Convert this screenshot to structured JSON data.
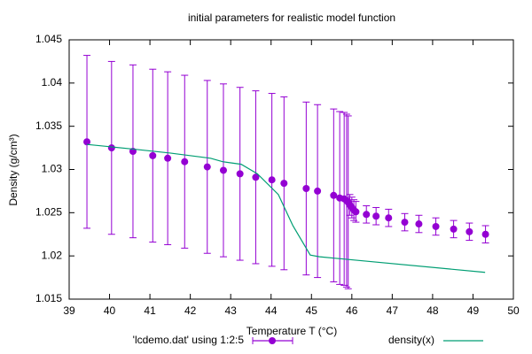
{
  "chart_data": {
    "type": "scatter",
    "title": "initial parameters for realistic model function",
    "x_label": "Temperature T (°C)",
    "y_label": "Density (g/cm³)",
    "xlim": [
      39,
      50
    ],
    "xticks": [
      39,
      40,
      41,
      42,
      43,
      44,
      45,
      46,
      47,
      48,
      49,
      50
    ],
    "ylim": [
      1.015,
      1.045
    ],
    "yticks": [
      1.015,
      1.02,
      1.025,
      1.03,
      1.035,
      1.04,
      1.045
    ],
    "legend": "bottom",
    "series": [
      {
        "name": "'lcdemo.dat' using 1:2:5",
        "color": "#9400d3",
        "type": "errorbar",
        "x": [
          39.44,
          40.05,
          40.58,
          41.07,
          41.44,
          41.86,
          42.42,
          42.82,
          43.23,
          43.62,
          44.02,
          44.32,
          44.87,
          45.15,
          45.55,
          45.7,
          45.81,
          45.87,
          45.91,
          45.95,
          46.0,
          46.05,
          46.1,
          46.36,
          46.6,
          46.91,
          47.31,
          47.66,
          48.08,
          48.52,
          48.91,
          49.31
        ],
        "values": [
          1.0332,
          1.0325,
          1.0321,
          1.0316,
          1.0313,
          1.0309,
          1.0303,
          1.0299,
          1.0295,
          1.0291,
          1.0288,
          1.0284,
          1.0278,
          1.0275,
          1.027,
          1.0267,
          1.0266,
          1.0264,
          1.0262,
          1.0259,
          1.0256,
          1.0253,
          1.0251,
          1.0248,
          1.0246,
          1.0244,
          1.0239,
          1.0237,
          1.0234,
          1.0231,
          1.0228,
          1.0225
        ],
        "errors": [
          0.01,
          0.01,
          0.01,
          0.01,
          0.01,
          0.01,
          0.01,
          0.01,
          0.01,
          0.01,
          0.01,
          0.01,
          0.01,
          0.01,
          0.01,
          0.01,
          0.01,
          0.01,
          0.01,
          0.0012,
          0.0012,
          0.0012,
          0.0012,
          0.001,
          0.001,
          0.001,
          0.001,
          0.001,
          0.001,
          0.001,
          0.001,
          0.001
        ]
      },
      {
        "name": "density(x)",
        "color": "#009e73",
        "type": "line",
        "x": [
          39.44,
          40.5,
          41.5,
          42.5,
          42.8,
          43.26,
          43.66,
          44.18,
          44.54,
          44.97,
          45.2,
          49.3
        ],
        "values": [
          1.0329,
          1.0324,
          1.0319,
          1.0313,
          1.0309,
          1.0306,
          1.0295,
          1.0271,
          1.0235,
          1.0201,
          1.0199,
          1.0181
        ]
      }
    ]
  }
}
